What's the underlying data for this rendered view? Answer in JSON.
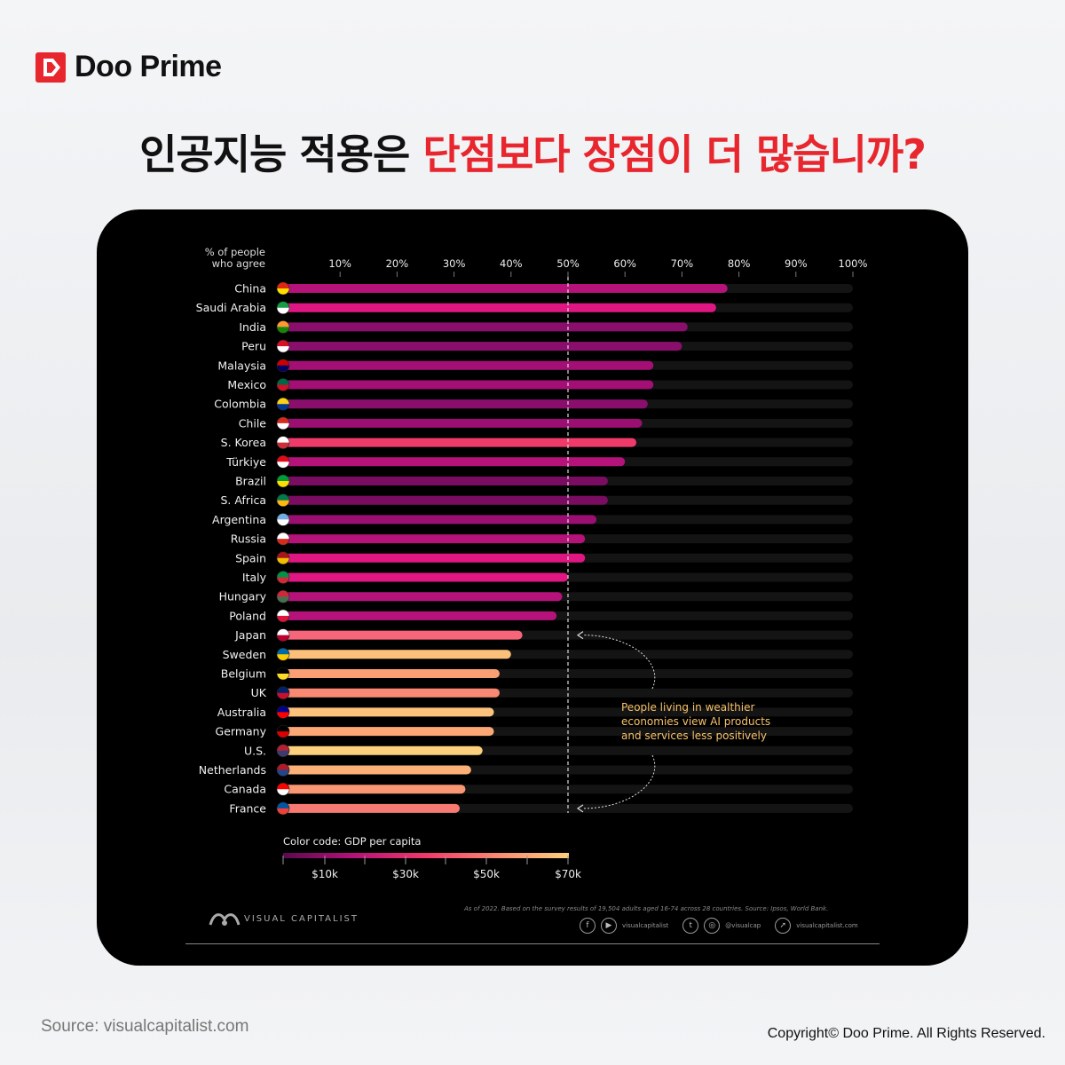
{
  "brand": {
    "name": "Doo Prime",
    "logo_icon": "doo-prime-logo-icon",
    "accent": "#e8262d"
  },
  "headline": {
    "part1": "인공지능 적용은 ",
    "part2": "단점보다 장점이 더 많습니까?"
  },
  "source": "Source: visualcapitalist.com",
  "copyright": "Copyright© Doo Prime. All Rights Reserved.",
  "chart_data": {
    "type": "bar",
    "orientation": "horizontal",
    "ylabel_line1": "% of people",
    "ylabel_line2": "who agree",
    "xlim": [
      0,
      100
    ],
    "xticks": [
      "10%",
      "20%",
      "30%",
      "40%",
      "50%",
      "60%",
      "70%",
      "80%",
      "90%",
      "100%"
    ],
    "reference_line": 50,
    "categories": [
      "China",
      "Saudi Arabia",
      "India",
      "Peru",
      "Malaysia",
      "Mexico",
      "Colombia",
      "Chile",
      "S. Korea",
      "Türkiye",
      "Brazil",
      "S. Africa",
      "Argentina",
      "Russia",
      "Spain",
      "Italy",
      "Hungary",
      "Poland",
      "Japan",
      "Sweden",
      "Belgium",
      "UK",
      "Australia",
      "Germany",
      "U.S.",
      "Netherlands",
      "Canada",
      "France"
    ],
    "values": [
      78,
      76,
      71,
      70,
      65,
      65,
      64,
      63,
      62,
      60,
      57,
      57,
      55,
      53,
      53,
      50,
      49,
      48,
      42,
      40,
      38,
      38,
      37,
      37,
      35,
      33,
      32,
      31
    ],
    "bar_colors": [
      "#b5127a",
      "#e01783",
      "#8a0f6c",
      "#8a0f6c",
      "#a30f75",
      "#a30f75",
      "#8a0f6c",
      "#9c0f72",
      "#f03a6a",
      "#b5127a",
      "#7a0c62",
      "#7a0c62",
      "#9c0f72",
      "#b5127a",
      "#e01783",
      "#e01783",
      "#b5127a",
      "#b5127a",
      "#f6657a",
      "#fcc07a",
      "#fa9e74",
      "#f98972",
      "#fdc27c",
      "#fca875",
      "#fdd07e",
      "#fbb077",
      "#f99674",
      "#f77a72"
    ],
    "flag_colors": [
      [
        "#de2910",
        "#ffde00"
      ],
      [
        "#159c45",
        "#ffffff"
      ],
      [
        "#ff9933",
        "#138808"
      ],
      [
        "#d91023",
        "#ffffff"
      ],
      [
        "#cc0001",
        "#010066"
      ],
      [
        "#006847",
        "#ce1126"
      ],
      [
        "#fcd116",
        "#003893"
      ],
      [
        "#d52b1e",
        "#ffffff"
      ],
      [
        "#ffffff",
        "#cd2e3a"
      ],
      [
        "#e30a17",
        "#ffffff"
      ],
      [
        "#009c3b",
        "#ffdf00"
      ],
      [
        "#007a4d",
        "#ffb612"
      ],
      [
        "#74acdf",
        "#ffffff"
      ],
      [
        "#ffffff",
        "#d52b1e"
      ],
      [
        "#aa151b",
        "#f1bf00"
      ],
      [
        "#009246",
        "#ce2b37"
      ],
      [
        "#ce2939",
        "#477050"
      ],
      [
        "#ffffff",
        "#dc143c"
      ],
      [
        "#ffffff",
        "#bc002d"
      ],
      [
        "#006aa7",
        "#fecc00"
      ],
      [
        "#000000",
        "#fdda24"
      ],
      [
        "#012169",
        "#c8102e"
      ],
      [
        "#00008b",
        "#ff0000"
      ],
      [
        "#000000",
        "#dd0000"
      ],
      [
        "#b22234",
        "#3c3b6e"
      ],
      [
        "#ae1c28",
        "#21468b"
      ],
      [
        "#ff0000",
        "#ffffff"
      ],
      [
        "#0055a4",
        "#ef4135"
      ]
    ],
    "annotation": [
      "People living in wealthier",
      "economies view AI products",
      "and services less positively"
    ],
    "color_legend": {
      "title": "Color code: GDP per capita",
      "ticks": [
        "$10k",
        "$30k",
        "$50k",
        "$70k"
      ],
      "gradient": [
        "#5a0a4e",
        "#b5127a",
        "#f03a6a",
        "#f98972",
        "#fdd07e"
      ]
    },
    "footnote": "As of 2022. Based on the survey results of 19,504 adults aged 16-74 across 28 countries. Source: Ipsos, World Bank.",
    "publisher": "VISUAL CAPITALIST",
    "social_handles": [
      "visualcapitalist",
      "@visualcap",
      "visualcapitalist.com"
    ]
  }
}
